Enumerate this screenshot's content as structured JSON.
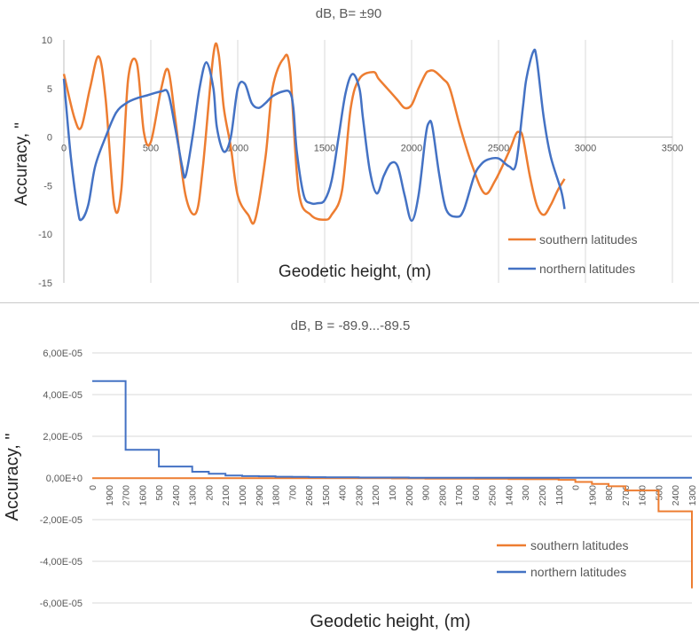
{
  "chart_data": [
    {
      "type": "line",
      "title": "dB, B= ±90",
      "xlabel": "Geodetic height, (m)",
      "ylabel": "Accuracy, \"",
      "xlim": [
        0,
        3500
      ],
      "ylim": [
        -15,
        10
      ],
      "x_ticks": [
        "0",
        "500",
        "1000",
        "1500",
        "2000",
        "2500",
        "3000",
        "3500"
      ],
      "y_ticks": [
        "10",
        "5",
        "0",
        "-5",
        "-10",
        "-15"
      ],
      "grid": "vertical",
      "legend_position": "bottom-right",
      "series": [
        {
          "name": "southern latitudes",
          "color": "#ED7D31",
          "x": [
            0,
            60,
            100,
            150,
            200,
            240,
            290,
            330,
            370,
            420,
            460,
            500,
            560,
            600,
            640,
            700,
            760,
            800,
            860,
            890,
            920,
            960,
            1000,
            1060,
            1100,
            1160,
            1200,
            1260,
            1300,
            1350,
            1420,
            1500,
            1540,
            1600,
            1650,
            1700,
            1780,
            1810,
            1860,
            1920,
            1960,
            2000,
            2040,
            2080,
            2100,
            2130,
            2180,
            2220,
            2280,
            2350,
            2420,
            2480,
            2560,
            2600,
            2620,
            2640,
            2680,
            2720,
            2760,
            2800,
            2840,
            2880
          ],
          "values": [
            6.5,
            2.0,
            1.0,
            5.0,
            8.3,
            4.0,
            -7.0,
            -5.5,
            6.0,
            7.6,
            0.5,
            -0.5,
            5.0,
            6.9,
            2.0,
            -6.0,
            -7.8,
            -3.0,
            8.5,
            8.6,
            3.0,
            -1.0,
            -6.0,
            -8.0,
            -8.5,
            -2.0,
            5.0,
            8.0,
            7.0,
            -5.5,
            -8.0,
            -8.5,
            -8.0,
            -5.5,
            3.0,
            6.0,
            6.7,
            6.0,
            5.0,
            3.8,
            3.0,
            3.3,
            5.0,
            6.5,
            6.8,
            6.8,
            6.0,
            5.0,
            1.0,
            -3.0,
            -5.8,
            -4.5,
            -1.5,
            0.3,
            0.5,
            0.0,
            -4.0,
            -7.0,
            -8.0,
            -7.0,
            -5.5,
            -4.3
          ]
        },
        {
          "name": "northern latitudes",
          "color": "#4472C4",
          "x": [
            0,
            40,
            80,
            100,
            140,
            180,
            240,
            300,
            360,
            420,
            480,
            560,
            600,
            640,
            680,
            700,
            740,
            780,
            820,
            860,
            880,
            920,
            960,
            1000,
            1040,
            1080,
            1120,
            1160,
            1200,
            1260,
            1300,
            1320,
            1340,
            1380,
            1420,
            1460,
            1500,
            1540,
            1580,
            1620,
            1660,
            1700,
            1720,
            1760,
            1800,
            1840,
            1880,
            1920,
            1960,
            2000,
            2040,
            2080,
            2100,
            2120,
            2160,
            2200,
            2260,
            2300,
            2360,
            2400,
            2440,
            2500,
            2560,
            2600,
            2640,
            2660,
            2700,
            2720,
            2760,
            2800,
            2860,
            2880
          ],
          "values": [
            6.0,
            -2.0,
            -7.5,
            -8.5,
            -7.0,
            -3.0,
            0.0,
            2.5,
            3.5,
            4.0,
            4.3,
            4.7,
            4.5,
            1.0,
            -3.0,
            -4.0,
            0.0,
            5.0,
            7.7,
            5.0,
            1.0,
            -1.5,
            0.0,
            5.0,
            5.5,
            3.5,
            3.0,
            3.5,
            4.2,
            4.7,
            4.6,
            3.0,
            -1.5,
            -6.0,
            -6.8,
            -6.8,
            -6.5,
            -4.5,
            0.0,
            4.5,
            6.5,
            5.0,
            2.0,
            -3.5,
            -5.8,
            -4.0,
            -2.7,
            -3.0,
            -6.0,
            -8.6,
            -6.0,
            0.0,
            1.5,
            1.0,
            -4.0,
            -7.5,
            -8.2,
            -7.5,
            -4.0,
            -2.8,
            -2.3,
            -2.2,
            -3.0,
            -2.8,
            3.0,
            6.0,
            8.8,
            8.0,
            2.0,
            -2.0,
            -5.5,
            -7.4
          ]
        }
      ]
    },
    {
      "type": "line",
      "title": "dB, B = -89.9...-89.5",
      "xlabel": "Geodetic height, (m)",
      "ylabel": "Accuracy, \"",
      "ylim": [
        -6e-05,
        6e-05
      ],
      "y_ticks": [
        "6,00E-05",
        "4,00E-05",
        "2,00E-05",
        "0,00E+0",
        "-2,00E-05",
        "-4,00E-05",
        "-6,00E-05"
      ],
      "categories": [
        "0",
        "1900",
        "2700",
        "1600",
        "500",
        "2400",
        "1300",
        "200",
        "2100",
        "1000",
        "2900",
        "1800",
        "700",
        "2600",
        "1500",
        "400",
        "2300",
        "1200",
        "100",
        "2000",
        "900",
        "2800",
        "1700",
        "600",
        "2500",
        "1400",
        "300",
        "2200",
        "1100",
        "0",
        "1900",
        "800",
        "2700",
        "1600",
        "500",
        "2400",
        "1300"
      ],
      "grid": "horizontal",
      "legend_position": "bottom-right",
      "series": [
        {
          "name": "southern latitudes",
          "color": "#ED7D31",
          "values": [
            -1e-07,
            -1e-07,
            -1e-07,
            -1e-07,
            -1e-07,
            -1e-07,
            -1e-07,
            -1e-07,
            -1e-07,
            -1e-07,
            -1e-07,
            -1e-07,
            -1e-07,
            -1e-07,
            -1e-07,
            -1e-07,
            -1e-07,
            -1e-07,
            -2e-07,
            -2e-07,
            -3e-07,
            -3e-07,
            -3e-07,
            -4e-07,
            -4e-07,
            -5e-07,
            -6e-07,
            -6e-07,
            -9e-07,
            -1.9e-06,
            -2.9e-06,
            -4e-06,
            -6e-06,
            -6e-06,
            -1.6e-05,
            -1.6e-05,
            -5.3e-05
          ]
        },
        {
          "name": "northern latitudes",
          "color": "#4472C4",
          "values": [
            4.65e-05,
            4.65e-05,
            1.35e-05,
            1.35e-05,
            5.5e-06,
            5.5e-06,
            3e-06,
            2e-06,
            1.2e-06,
            9e-07,
            8e-07,
            6e-07,
            5e-07,
            4e-07,
            3e-07,
            3e-07,
            2e-07,
            2e-07,
            2e-07,
            1e-07,
            1e-07,
            1e-07,
            1e-07,
            1e-07,
            1e-07,
            1e-07,
            1e-07,
            1e-07,
            1e-07,
            1e-07,
            1e-07,
            1e-07,
            1e-07,
            1e-07,
            1e-07,
            1e-07,
            1e-07
          ]
        }
      ]
    }
  ]
}
